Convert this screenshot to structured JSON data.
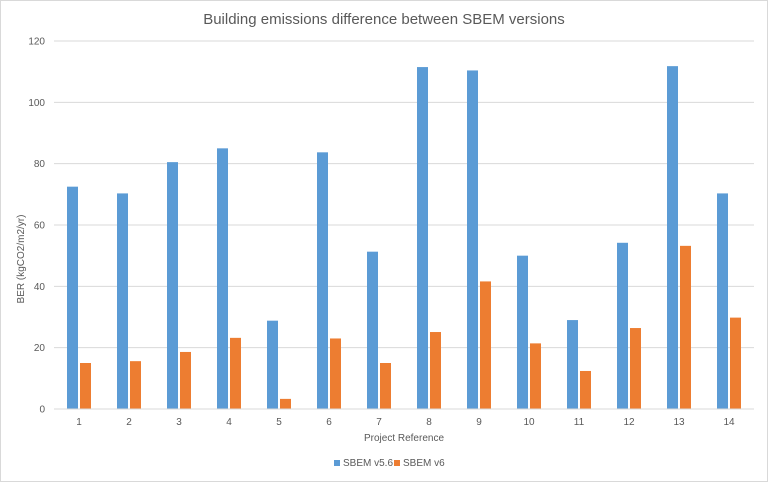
{
  "chart_data": {
    "type": "bar",
    "title": "Building emissions difference between SBEM versions",
    "xlabel": "Project Reference",
    "ylabel": "BER (kgCO2/m2/yr)",
    "ylim": [
      0,
      120
    ],
    "yticks": [
      0,
      20,
      40,
      60,
      80,
      100,
      120
    ],
    "grid": true,
    "legend_position": "bottom",
    "categories": [
      "1",
      "2",
      "3",
      "4",
      "5",
      "6",
      "7",
      "8",
      "9",
      "10",
      "11",
      "12",
      "13",
      "14"
    ],
    "series": [
      {
        "name": "SBEM v5.6",
        "color": "#5b9bd5",
        "values": [
          72.5,
          70.3,
          80.5,
          85.0,
          28.8,
          83.7,
          51.3,
          111.5,
          110.4,
          50.0,
          29.0,
          54.2,
          111.8,
          70.3
        ]
      },
      {
        "name": "SBEM v6",
        "color": "#ed7d31",
        "values": [
          15.0,
          15.6,
          18.6,
          23.2,
          3.3,
          23.0,
          15.0,
          25.1,
          41.6,
          21.4,
          12.4,
          26.4,
          53.2,
          29.8
        ]
      }
    ]
  }
}
